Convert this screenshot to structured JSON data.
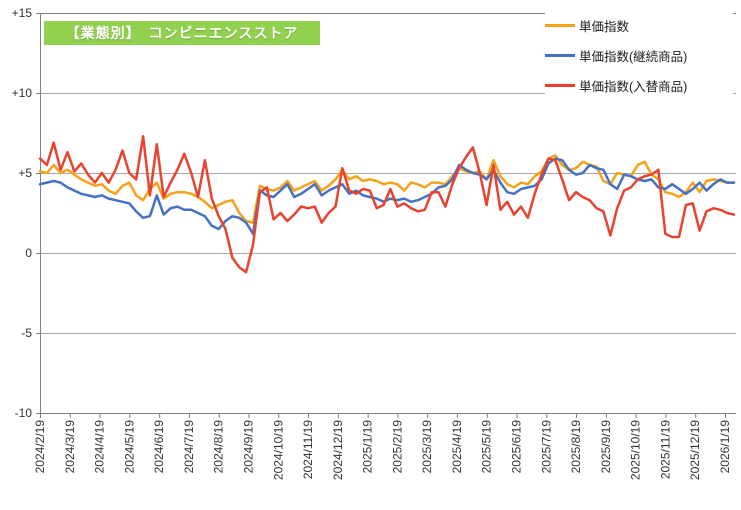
{
  "title": {
    "text": "【業態別】　コンビニエンスストア",
    "bg_color": "#92D050",
    "text_color": "#FFFFFF"
  },
  "chart_data": {
    "type": "line",
    "x_unit": "weekly",
    "x_labels": [
      "2024/2/19",
      "2024/3/19",
      "2024/4/19",
      "2024/5/19",
      "2024/6/19",
      "2024/7/19",
      "2024/8/19",
      "2024/9/19",
      "2024/10/19",
      "2024/11/19",
      "2024/12/19",
      "2025/1/19",
      "2025/2/19",
      "2025/3/19",
      "2025/4/19",
      "2025/5/19",
      "2025/6/19",
      "2025/7/19",
      "2025/8/19",
      "2025/9/19",
      "2025/10/19",
      "2025/11/19",
      "2025/12/19",
      "2026/1/19"
    ],
    "y_axis": {
      "min": -10,
      "max": 15,
      "tick_interval": 5,
      "tick_labels": [
        "+15",
        "+10",
        "+5",
        "0",
        "-5",
        "-10"
      ],
      "tick_values": [
        15,
        10,
        5,
        0,
        -5,
        -10
      ]
    },
    "grid": true,
    "legend_position": "top-right",
    "series": [
      {
        "name": "単価指数",
        "color": "#F7A11A",
        "values": [
          5.1,
          5.0,
          5.5,
          5.0,
          5.2,
          4.9,
          4.6,
          4.4,
          4.2,
          4.3,
          3.9,
          3.7,
          4.2,
          4.4,
          3.6,
          3.3,
          4.0,
          4.4,
          3.4,
          3.7,
          3.8,
          3.8,
          3.7,
          3.5,
          3.2,
          2.8,
          3.0,
          3.2,
          3.3,
          2.5,
          2.0,
          1.9,
          4.2,
          4.0,
          3.9,
          4.1,
          4.5,
          3.9,
          4.1,
          4.3,
          4.5,
          3.9,
          4.2,
          4.6,
          5.2,
          4.6,
          4.8,
          4.5,
          4.6,
          4.5,
          4.3,
          4.4,
          4.3,
          3.9,
          4.4,
          4.3,
          4.1,
          4.4,
          4.4,
          4.3,
          4.8,
          5.3,
          5.1,
          5.0,
          5.1,
          4.6,
          5.8,
          4.8,
          4.3,
          4.1,
          4.4,
          4.3,
          4.8,
          5.1,
          5.9,
          6.1,
          5.5,
          5.2,
          5.3,
          5.7,
          5.5,
          5.4,
          4.5,
          4.3,
          5.0,
          4.9,
          4.8,
          5.5,
          5.7,
          4.9,
          4.6,
          3.8,
          3.7,
          3.5,
          3.8,
          4.4,
          3.8,
          4.5,
          4.6,
          4.5,
          4.4,
          4.4
        ]
      },
      {
        "name": "単価指数(継続商品)",
        "color": "#4472C4",
        "values": [
          4.3,
          4.4,
          4.5,
          4.4,
          4.1,
          3.9,
          3.7,
          3.6,
          3.5,
          3.6,
          3.4,
          3.3,
          3.2,
          3.1,
          2.6,
          2.2,
          2.3,
          3.6,
          2.4,
          2.8,
          2.9,
          2.7,
          2.7,
          2.5,
          2.3,
          1.7,
          1.5,
          2.0,
          2.3,
          2.2,
          1.9,
          1.2,
          3.9,
          3.6,
          3.5,
          3.9,
          4.3,
          3.5,
          3.7,
          4.0,
          4.3,
          3.6,
          3.9,
          4.1,
          4.3,
          3.7,
          3.9,
          3.6,
          3.5,
          3.4,
          3.2,
          3.4,
          3.3,
          3.4,
          3.2,
          3.3,
          3.5,
          3.7,
          4.1,
          4.2,
          4.6,
          5.5,
          5.2,
          5.0,
          4.9,
          4.6,
          5.2,
          4.4,
          3.8,
          3.7,
          4.0,
          4.1,
          4.2,
          4.6,
          5.6,
          5.9,
          5.8,
          5.2,
          4.9,
          5.0,
          5.5,
          5.3,
          5.2,
          4.3,
          4.0,
          4.9,
          4.8,
          4.6,
          4.5,
          4.6,
          4.1,
          4.0,
          4.3,
          4.0,
          3.7,
          4.0,
          4.4,
          3.9,
          4.3,
          4.6,
          4.4,
          4.4
        ]
      },
      {
        "name": "単価指数(入替商品)",
        "color": "#E8432E",
        "values": [
          5.9,
          5.5,
          6.9,
          5.2,
          6.3,
          5.1,
          5.6,
          4.9,
          4.4,
          5.0,
          4.4,
          5.2,
          6.4,
          5.0,
          4.6,
          7.3,
          3.6,
          6.8,
          3.5,
          4.4,
          5.2,
          6.2,
          5.0,
          3.5,
          5.8,
          3.4,
          2.3,
          1.5,
          -0.3,
          -0.9,
          -1.2,
          0.5,
          3.8,
          4.1,
          2.1,
          2.5,
          2.0,
          2.4,
          2.9,
          2.8,
          2.9,
          1.9,
          2.5,
          2.9,
          5.3,
          3.9,
          3.7,
          4.0,
          3.9,
          2.8,
          3.0,
          4.0,
          2.9,
          3.1,
          2.8,
          2.6,
          2.7,
          3.8,
          3.8,
          2.9,
          4.3,
          5.3,
          6.0,
          6.6,
          5.0,
          3.0,
          5.5,
          2.7,
          3.2,
          2.4,
          2.9,
          2.2,
          3.7,
          4.9,
          5.9,
          5.8,
          4.6,
          3.3,
          3.8,
          3.5,
          3.3,
          2.8,
          2.6,
          1.1,
          2.8,
          3.9,
          4.1,
          4.6,
          4.8,
          4.9,
          5.2,
          1.2,
          1.0,
          1.0,
          3.0,
          3.1,
          1.4,
          2.6,
          2.8,
          2.7,
          2.5,
          2.4
        ]
      }
    ]
  },
  "style_colors": {
    "gridline": "#A6A6A6",
    "axis": "#808080",
    "tick_text": "#333333"
  }
}
